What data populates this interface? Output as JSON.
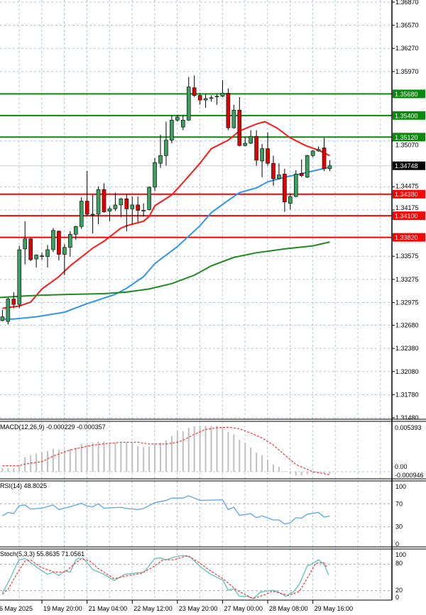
{
  "chart_data": {
    "type": "candlestick",
    "instrument_timeframe": "H4",
    "colors": {
      "bull": "#3c9e5f",
      "bear": "#e00000",
      "ma_fast": "#ff1a1a",
      "ma_mid": "#2e96f0",
      "ma_slow": "#1f8a1f",
      "resistance": "#0a8a0a",
      "support": "#ff0000",
      "grid": "#b8c6d8",
      "current_price_bg": "#000000",
      "macd_hist": "#c0c0c0",
      "macd_signal": "#ff3030",
      "rsi": "#5aa6ee",
      "stoch_main": "#5cc2b8",
      "stoch_signal": "#ff3030"
    },
    "price_axis": {
      "range": [
        1.3148,
        1.3687
      ],
      "ticks": [
        "1.36870",
        "1.36570",
        "1.36270",
        "1.35970",
        "1.35070",
        "1.34475",
        "1.34175",
        "1.33575",
        "1.33275",
        "1.32975",
        "1.32680",
        "1.32380",
        "1.32080",
        "1.31780",
        "1.31480"
      ]
    },
    "levels": {
      "resistance": [
        {
          "price": 1.3568,
          "label": "1.35680"
        },
        {
          "price": 1.354,
          "label": "1.35400"
        },
        {
          "price": 1.3512,
          "label": "1.35120"
        }
      ],
      "support": [
        {
          "price": 1.3438,
          "label": "1.34380"
        },
        {
          "price": 1.341,
          "label": "1.34100"
        },
        {
          "price": 1.3382,
          "label": "1.33820"
        }
      ],
      "current": {
        "price": 1.34748,
        "label": "1.34748"
      }
    },
    "candles": [
      [
        1.3274,
        1.3288,
        1.3273,
        1.3279
      ],
      [
        1.3273,
        1.3304,
        1.3269,
        1.3302
      ],
      [
        1.3302,
        1.3311,
        1.329,
        1.3295
      ],
      [
        1.3295,
        1.3371,
        1.329,
        1.3366
      ],
      [
        1.3367,
        1.3403,
        1.3347,
        1.338
      ],
      [
        1.338,
        1.3381,
        1.3351,
        1.3353
      ],
      [
        1.3354,
        1.336,
        1.3343,
        1.3359
      ],
      [
        1.3358,
        1.3362,
        1.3353,
        1.3358
      ],
      [
        1.3357,
        1.3372,
        1.3343,
        1.3366
      ],
      [
        1.3366,
        1.3394,
        1.3363,
        1.3391
      ],
      [
        1.339,
        1.3391,
        1.3352,
        1.336
      ],
      [
        1.336,
        1.3373,
        1.3333,
        1.3369
      ],
      [
        1.3369,
        1.339,
        1.3357,
        1.3386
      ],
      [
        1.3386,
        1.3397,
        1.3379,
        1.3396
      ],
      [
        1.3396,
        1.3434,
        1.3393,
        1.3429
      ],
      [
        1.3429,
        1.3468,
        1.3409,
        1.3412
      ],
      [
        1.3412,
        1.3437,
        1.3387,
        1.3412
      ],
      [
        1.3412,
        1.3448,
        1.3399,
        1.3444
      ],
      [
        1.3444,
        1.3452,
        1.3414,
        1.3415
      ],
      [
        1.3416,
        1.3422,
        1.3403,
        1.3419
      ],
      [
        1.3419,
        1.344,
        1.3416,
        1.3424
      ],
      [
        1.3424,
        1.3433,
        1.3408,
        1.3432
      ],
      [
        1.3432,
        1.3438,
        1.339,
        1.3419
      ],
      [
        1.3419,
        1.3435,
        1.3399,
        1.3424
      ],
      [
        1.3424,
        1.3435,
        1.3402,
        1.3417
      ],
      [
        1.3417,
        1.3426,
        1.3409,
        1.3417
      ],
      [
        1.3418,
        1.3448,
        1.3417,
        1.3447
      ],
      [
        1.3447,
        1.3485,
        1.3442,
        1.3479
      ],
      [
        1.3478,
        1.3515,
        1.3472,
        1.3488
      ],
      [
        1.3488,
        1.3532,
        1.3475,
        1.3508
      ],
      [
        1.3508,
        1.354,
        1.3504,
        1.3534
      ],
      [
        1.3534,
        1.3541,
        1.3532,
        1.3538
      ],
      [
        1.3525,
        1.354,
        1.3521,
        1.3534
      ],
      [
        1.3534,
        1.359,
        1.3533,
        1.3577
      ],
      [
        1.3576,
        1.3592,
        1.3564,
        1.3566
      ],
      [
        1.3566,
        1.3569,
        1.3554,
        1.356
      ],
      [
        1.356,
        1.3568,
        1.355,
        1.3562
      ],
      [
        1.3563,
        1.3566,
        1.3558,
        1.3563
      ],
      [
        1.3565,
        1.3568,
        1.3554,
        1.3565
      ],
      [
        1.3565,
        1.3586,
        1.3564,
        1.3569
      ],
      [
        1.3569,
        1.3575,
        1.3521,
        1.3524
      ],
      [
        1.3524,
        1.3554,
        1.3523,
        1.3547
      ],
      [
        1.3547,
        1.3564,
        1.35,
        1.3501
      ],
      [
        1.3501,
        1.3512,
        1.35,
        1.3504
      ],
      [
        1.3504,
        1.3521,
        1.3503,
        1.3513
      ],
      [
        1.3513,
        1.3521,
        1.3475,
        1.3482
      ],
      [
        1.3481,
        1.3503,
        1.346,
        1.3497
      ],
      [
        1.3497,
        1.3518,
        1.3475,
        1.3478
      ],
      [
        1.3478,
        1.3488,
        1.3449,
        1.3458
      ],
      [
        1.3458,
        1.3478,
        1.3457,
        1.3463
      ],
      [
        1.3464,
        1.3471,
        1.3415,
        1.3428
      ],
      [
        1.3426,
        1.3439,
        1.3418,
        1.3435
      ],
      [
        1.3435,
        1.3469,
        1.3434,
        1.3464
      ],
      [
        1.3465,
        1.3483,
        1.346,
        1.3462
      ],
      [
        1.346,
        1.3489,
        1.3459,
        1.3488
      ],
      [
        1.3488,
        1.3495,
        1.3486,
        1.3494
      ],
      [
        1.3494,
        1.35,
        1.3493,
        1.3496
      ],
      [
        1.3498,
        1.3511,
        1.3468,
        1.3471
      ],
      [
        1.3471,
        1.3482,
        1.3468,
        1.34748
      ]
    ],
    "moving_averages": [
      {
        "color_key": "ma_fast",
        "points": [
          [
            0,
            1.329
          ],
          [
            3,
            1.3293
          ],
          [
            5,
            1.3298
          ],
          [
            7,
            1.3315
          ],
          [
            10,
            1.3331
          ],
          [
            12,
            1.3345
          ],
          [
            16,
            1.3368
          ],
          [
            18,
            1.3377
          ],
          [
            21,
            1.3394
          ],
          [
            22,
            1.3397
          ],
          [
            23,
            1.3399
          ],
          [
            25,
            1.3403
          ],
          [
            26,
            1.3409
          ],
          [
            27,
            1.3423
          ],
          [
            30,
            1.3437
          ],
          [
            32,
            1.3453
          ],
          [
            35,
            1.3478
          ],
          [
            37,
            1.3497
          ],
          [
            40,
            1.3508
          ],
          [
            42,
            1.352
          ],
          [
            45,
            1.3529
          ],
          [
            46.5,
            1.3532
          ],
          [
            48.6,
            1.3524
          ],
          [
            51,
            1.3511
          ],
          [
            53.7,
            1.3501
          ],
          [
            56,
            1.3495
          ],
          [
            58,
            1.3488
          ]
        ]
      },
      {
        "color_key": "ma_mid",
        "points": [
          [
            0,
            1.3276
          ],
          [
            2,
            1.3276
          ],
          [
            6,
            1.3279
          ],
          [
            11,
            1.3285
          ],
          [
            15,
            1.3296
          ],
          [
            20,
            1.3308
          ],
          [
            22,
            1.3316
          ],
          [
            25,
            1.3331
          ],
          [
            27,
            1.3348
          ],
          [
            31,
            1.337
          ],
          [
            35,
            1.3397
          ],
          [
            37,
            1.3414
          ],
          [
            40,
            1.343
          ],
          [
            42,
            1.344
          ],
          [
            45,
            1.3446
          ],
          [
            47,
            1.3454
          ],
          [
            50,
            1.346
          ],
          [
            52,
            1.3463
          ],
          [
            55,
            1.3468
          ],
          [
            58,
            1.3473
          ]
        ]
      },
      {
        "color_key": "ma_slow",
        "points": [
          [
            -0.5,
            1.3304
          ],
          [
            4,
            1.3306
          ],
          [
            7,
            1.3307
          ],
          [
            12,
            1.3308
          ],
          [
            18,
            1.3309
          ],
          [
            22,
            1.3311
          ],
          [
            26,
            1.3315
          ],
          [
            30,
            1.3322
          ],
          [
            34,
            1.3333
          ],
          [
            37,
            1.3345
          ],
          [
            41,
            1.3356
          ],
          [
            45,
            1.3362
          ],
          [
            50,
            1.3367
          ],
          [
            55,
            1.3371
          ],
          [
            58,
            1.3376
          ]
        ]
      }
    ],
    "macd": {
      "label": "MACD(12,26,9) -0.000229 -0.000357",
      "axis_ticks": [
        "0.005393",
        "0.00",
        "-0.000946"
      ],
      "range": [
        -0.000946,
        0.005393
      ],
      "histogram": [
        0.00044,
        0.00044,
        0.00044,
        0.00073,
        0.00175,
        0.00198,
        0.00219,
        0.00233,
        0.00248,
        0.00277,
        0.00268,
        0.00262,
        0.00277,
        0.00292,
        0.00335,
        0.00326,
        0.0035,
        0.00364,
        0.00364,
        0.0035,
        0.0035,
        0.0035,
        0.00356,
        0.0035,
        0.00306,
        0.00297,
        0.00306,
        0.00335,
        0.0035,
        0.00379,
        0.00431,
        0.0049,
        0.0049,
        0.00531,
        0.00548,
        0.00554,
        0.00554,
        0.00554,
        0.00554,
        0.00539,
        0.00481,
        0.00452,
        0.00385,
        0.0035,
        0.00292,
        0.00233,
        0.00198,
        0.00146,
        0.00087,
        0.00058,
        6e-05,
        -0.0002,
        -0.00044,
        -0.00044,
        -0.0003,
        -0.0002,
        -0.0001,
        -0.0002,
        -0.000229
      ],
      "signal": [
        [
          0,
          0.00073
        ],
        [
          3,
          0.00073
        ],
        [
          4,
          0.00093
        ],
        [
          7,
          0.00122
        ],
        [
          9,
          0.00189
        ],
        [
          12,
          0.00262
        ],
        [
          14,
          0.00292
        ],
        [
          16,
          0.00321
        ],
        [
          19,
          0.00344
        ],
        [
          21,
          0.00356
        ],
        [
          24,
          0.00356
        ],
        [
          26,
          0.00335
        ],
        [
          29,
          0.00335
        ],
        [
          31,
          0.00356
        ],
        [
          32,
          0.00379
        ],
        [
          34,
          0.00452
        ],
        [
          36,
          0.0051
        ],
        [
          38,
          0.00531
        ],
        [
          40,
          0.00536
        ],
        [
          42,
          0.00519
        ],
        [
          44,
          0.00466
        ],
        [
          46,
          0.00408
        ],
        [
          48,
          0.00321
        ],
        [
          50,
          0.00204
        ],
        [
          52,
          0.00087
        ],
        [
          54,
          0.00029
        ],
        [
          55,
          0
        ],
        [
          58,
          -0.000357
        ]
      ]
    },
    "rsi": {
      "label": "RSI(14) 48.8025",
      "axis_ticks": [
        "100",
        "70",
        "30",
        "0"
      ],
      "levels": [
        70,
        30
      ],
      "points": [
        [
          0,
          49
        ],
        [
          1,
          55
        ],
        [
          2,
          53
        ],
        [
          3,
          67
        ],
        [
          4,
          68
        ],
        [
          5,
          61
        ],
        [
          7,
          62.5
        ],
        [
          9,
          68
        ],
        [
          10,
          60
        ],
        [
          12,
          65
        ],
        [
          14,
          71
        ],
        [
          15,
          66
        ],
        [
          16,
          65
        ],
        [
          17,
          70
        ],
        [
          18,
          62.5
        ],
        [
          21,
          64
        ],
        [
          22,
          62
        ],
        [
          24,
          60
        ],
        [
          25,
          62
        ],
        [
          27,
          72
        ],
        [
          29,
          76
        ],
        [
          30,
          80
        ],
        [
          32,
          80
        ],
        [
          33,
          84
        ],
        [
          35,
          76
        ],
        [
          39,
          77
        ],
        [
          40,
          60
        ],
        [
          41,
          64
        ],
        [
          42,
          50
        ],
        [
          44,
          53
        ],
        [
          45,
          46
        ],
        [
          46,
          49
        ],
        [
          48,
          42
        ],
        [
          49,
          42
        ],
        [
          50,
          35
        ],
        [
          51,
          37
        ],
        [
          52,
          46
        ],
        [
          53,
          45
        ],
        [
          54,
          52
        ],
        [
          56,
          55
        ],
        [
          57,
          47
        ],
        [
          58,
          48.8
        ]
      ]
    },
    "stoch": {
      "label": "Stoch(5,3,3) 55.8635 71.0561",
      "axis_ticks": [
        "100",
        "80",
        "20",
        "0"
      ],
      "levels": [
        80,
        20
      ],
      "main": [
        [
          0,
          15
        ],
        [
          0.5,
          26
        ],
        [
          1.5,
          51
        ],
        [
          2.5,
          79
        ],
        [
          3,
          90
        ],
        [
          4,
          93
        ],
        [
          5,
          84
        ],
        [
          6.3,
          71
        ],
        [
          8,
          57
        ],
        [
          9,
          62
        ],
        [
          10,
          54
        ],
        [
          11.1,
          65
        ],
        [
          12,
          62
        ],
        [
          13,
          90
        ],
        [
          14,
          97
        ],
        [
          15,
          84
        ],
        [
          16,
          68
        ],
        [
          18,
          57
        ],
        [
          19.8,
          43
        ],
        [
          21.7,
          57
        ],
        [
          23,
          59
        ],
        [
          25.1,
          62
        ],
        [
          27,
          93
        ],
        [
          28,
          94
        ],
        [
          29,
          90
        ],
        [
          30.4,
          96
        ],
        [
          31.9,
          100
        ],
        [
          33.3,
          96
        ],
        [
          35.2,
          73
        ],
        [
          36.7,
          59
        ],
        [
          39.1,
          43
        ],
        [
          40,
          21
        ],
        [
          41,
          24
        ],
        [
          42,
          7
        ],
        [
          43.4,
          7
        ],
        [
          44.4,
          2
        ],
        [
          45.8,
          17
        ],
        [
          47.8,
          21
        ],
        [
          48.7,
          18
        ],
        [
          50.2,
          7
        ],
        [
          51.6,
          18
        ],
        [
          52.6,
          34
        ],
        [
          54,
          76
        ],
        [
          55,
          82
        ],
        [
          56,
          90
        ],
        [
          57,
          79
        ],
        [
          57.8,
          55.86
        ]
      ],
      "signal": [
        [
          0,
          12
        ],
        [
          1,
          23
        ],
        [
          2.5,
          57
        ],
        [
          4,
          87
        ],
        [
          5,
          90
        ],
        [
          6.8,
          73
        ],
        [
          9.2,
          62
        ],
        [
          11.1,
          62
        ],
        [
          12.6,
          79
        ],
        [
          14,
          93
        ],
        [
          15.5,
          87
        ],
        [
          16.9,
          71
        ],
        [
          19.8,
          47
        ],
        [
          22.2,
          54
        ],
        [
          24.6,
          59
        ],
        [
          26.6,
          73
        ],
        [
          28.5,
          90
        ],
        [
          30.4,
          90
        ],
        [
          32.8,
          100
        ],
        [
          34.8,
          84
        ],
        [
          37.2,
          62
        ],
        [
          39.1,
          47
        ],
        [
          41.5,
          21
        ],
        [
          44.4,
          2
        ],
        [
          46.8,
          12
        ],
        [
          47.8,
          19
        ],
        [
          50.7,
          9
        ],
        [
          52.6,
          18
        ],
        [
          54,
          48
        ],
        [
          55.5,
          82
        ],
        [
          56.9,
          84
        ],
        [
          57.6,
          71.06
        ]
      ]
    },
    "x_axis": {
      "labels": [
        "6 May 2025",
        "19 May 20:00",
        "21 May 04:00",
        "22 May 12:00",
        "23 May 20:00",
        "27 May 00:00",
        "28 May 08:00",
        "29 May 16:00"
      ],
      "label_candle_index": [
        -1,
        7,
        15,
        23,
        31,
        39,
        47,
        55
      ]
    }
  }
}
